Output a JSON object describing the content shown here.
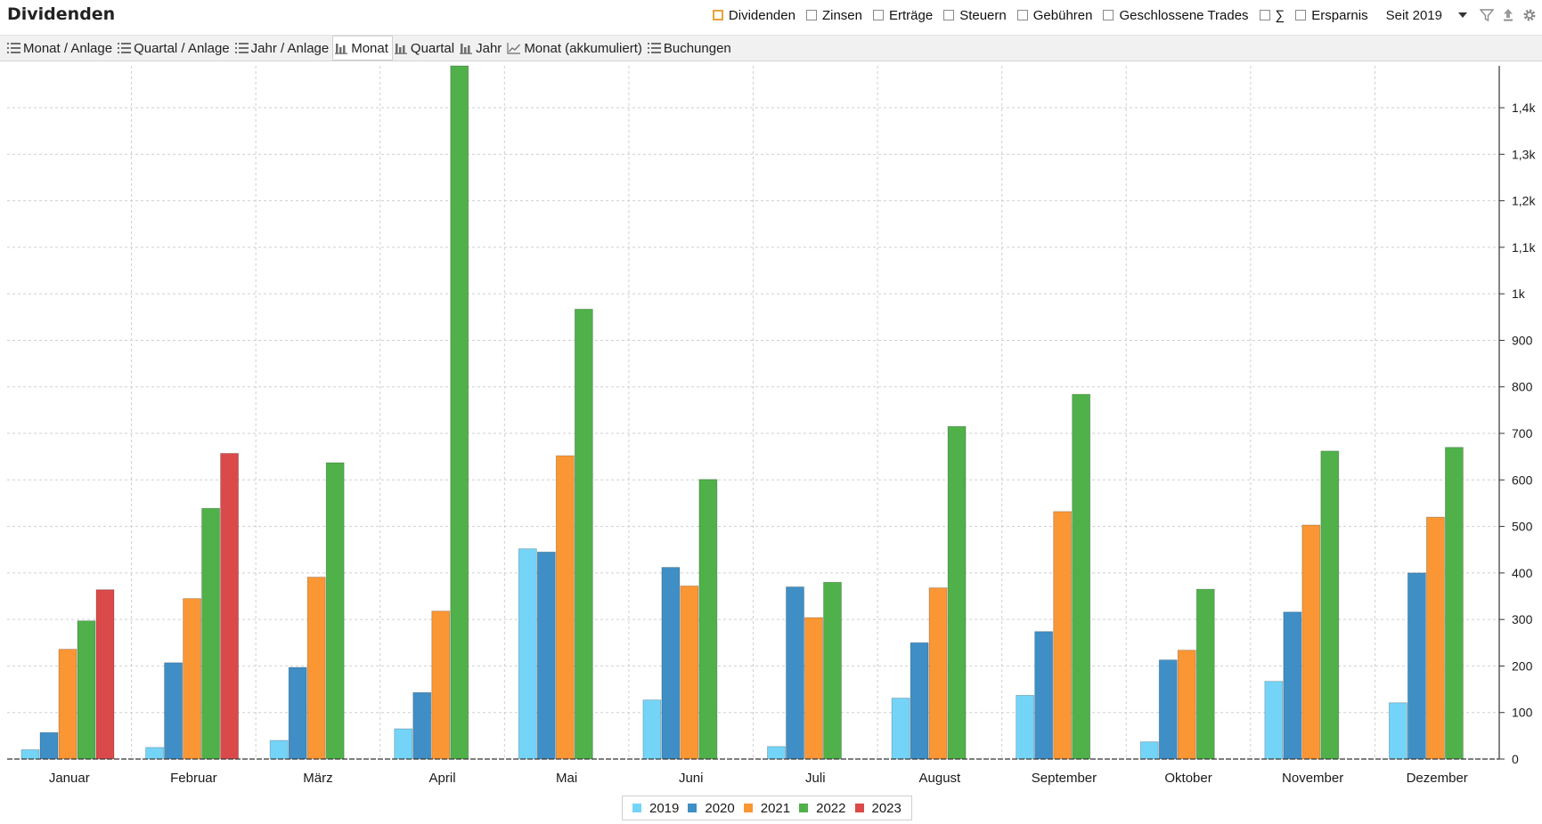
{
  "header": {
    "title": "Dividenden"
  },
  "filters": [
    {
      "label": "Dividenden",
      "checked": true
    },
    {
      "label": "Zinsen",
      "checked": false
    },
    {
      "label": "Erträge",
      "checked": false
    },
    {
      "label": "Steuern",
      "checked": false
    },
    {
      "label": "Gebühren",
      "checked": false
    },
    {
      "label": "Geschlossene Trades",
      "checked": false
    },
    {
      "label": "∑",
      "checked": false
    },
    {
      "label": "Ersparnis",
      "checked": false
    }
  ],
  "period": {
    "label": "Seit 2019"
  },
  "toolbar_icons": [
    "filter-icon",
    "export-icon",
    "settings-icon"
  ],
  "tabs": [
    {
      "label": "Monat / Anlage",
      "icon": "list-icon",
      "active": false
    },
    {
      "label": "Quartal / Anlage",
      "icon": "list-icon",
      "active": false
    },
    {
      "label": "Jahr / Anlage",
      "icon": "list-icon",
      "active": false
    },
    {
      "label": "Monat",
      "icon": "bar-chart-icon",
      "active": true
    },
    {
      "label": "Quartal",
      "icon": "bar-chart-icon",
      "active": false
    },
    {
      "label": "Jahr",
      "icon": "bar-chart-icon",
      "active": false
    },
    {
      "label": "Monat (akkumuliert)",
      "icon": "line-chart-icon",
      "active": false
    },
    {
      "label": "Buchungen",
      "icon": "list-icon",
      "active": false
    }
  ],
  "chart_data": {
    "type": "bar",
    "categories": [
      "Januar",
      "Februar",
      "März",
      "April",
      "Mai",
      "Juni",
      "Juli",
      "August",
      "September",
      "Oktober",
      "November",
      "Dezember"
    ],
    "series": [
      {
        "name": "2019",
        "color": "#74d4f8",
        "values": [
          20,
          25,
          40,
          65,
          452,
          127,
          27,
          131,
          137,
          37,
          167,
          121
        ]
      },
      {
        "name": "2020",
        "color": "#3f8fc6",
        "values": [
          57,
          207,
          197,
          143,
          445,
          412,
          370,
          250,
          274,
          213,
          316,
          400
        ]
      },
      {
        "name": "2021",
        "color": "#fa9634",
        "values": [
          236,
          345,
          391,
          318,
          652,
          372,
          304,
          368,
          532,
          234,
          503,
          520
        ]
      },
      {
        "name": "2022",
        "color": "#50b14a",
        "values": [
          297,
          539,
          637,
          1490,
          967,
          601,
          380,
          715,
          784,
          365,
          662,
          670
        ]
      },
      {
        "name": "2023",
        "color": "#db4a4a",
        "values": [
          364,
          657,
          null,
          null,
          null,
          null,
          null,
          null,
          null,
          null,
          null,
          null
        ]
      }
    ],
    "y_axis": {
      "position": "right",
      "min": 0,
      "max": 1490,
      "ticks": [
        0,
        100,
        200,
        300,
        400,
        500,
        600,
        700,
        800,
        900,
        1000,
        1100,
        1200,
        1300,
        1400
      ],
      "tick_labels": [
        "0",
        "100",
        "200",
        "300",
        "400",
        "500",
        "600",
        "700",
        "800",
        "900",
        "1k",
        "1,1k",
        "1,2k",
        "1,3k",
        "1,4k"
      ]
    },
    "grid": true,
    "legend_position": "bottom-center"
  }
}
